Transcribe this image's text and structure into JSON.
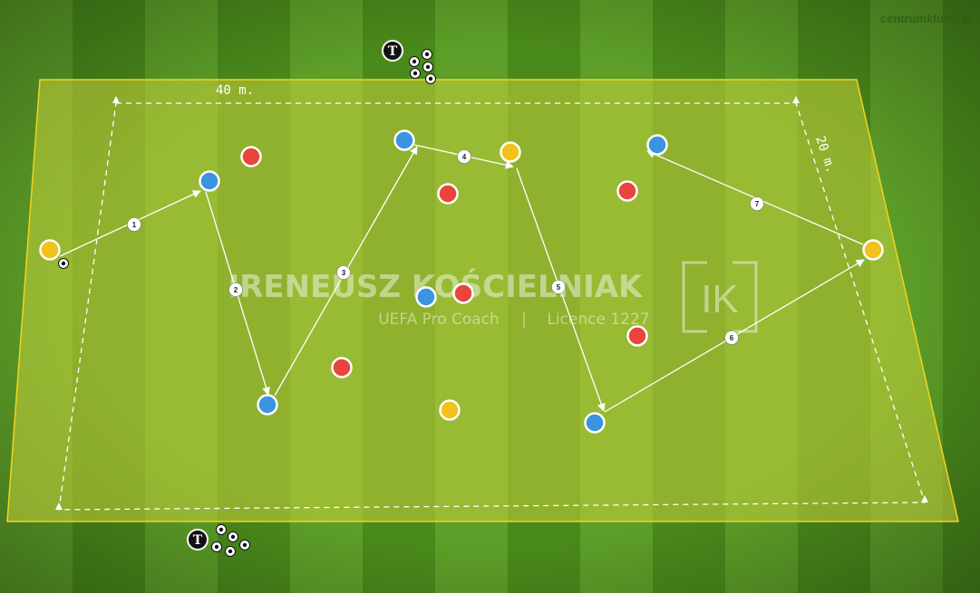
{
  "site": "centrumklubu.pl",
  "dimensions": {
    "length_label": "40 m.",
    "width_label": "20 m."
  },
  "watermark": {
    "name": "IRENEUSZ KOŚCIELNIAK",
    "subtitle_left": "UEFA Pro Coach",
    "separator": "|",
    "subtitle_right": "Licence 1227",
    "logo_text": "IK"
  },
  "trainer_label": "T",
  "pass_labels": [
    "1",
    "2",
    "3",
    "4",
    "5",
    "6",
    "7"
  ],
  "colors": {
    "blue_player": "#3b94e0",
    "red_player": "#e8453c",
    "yellow_player": "#f2c21a",
    "zone_border": "#f2d31c",
    "zone_fill": "#b8c83a",
    "grass_light": "#5fa12a",
    "grass_dark": "#4a8a1c"
  },
  "players": [
    {
      "team": "yellow",
      "role": "start-with-ball"
    },
    {
      "team": "blue"
    },
    {
      "team": "blue"
    },
    {
      "team": "blue"
    },
    {
      "team": "blue"
    },
    {
      "team": "blue"
    },
    {
      "team": "blue"
    },
    {
      "team": "yellow"
    },
    {
      "team": "yellow"
    },
    {
      "team": "yellow"
    },
    {
      "team": "red"
    },
    {
      "team": "red"
    },
    {
      "team": "red"
    },
    {
      "team": "red"
    },
    {
      "team": "red"
    },
    {
      "team": "red"
    }
  ]
}
